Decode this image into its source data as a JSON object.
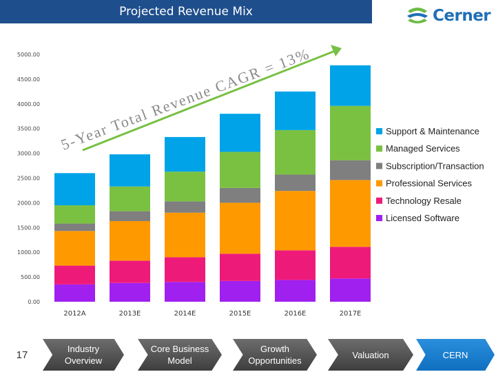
{
  "header": {
    "title": "Projected Revenue Mix",
    "logo_text": "Cerner"
  },
  "colors": {
    "header_bg": "#1f4e8c",
    "brand_blue": "#1f6fb5",
    "brand_green": "#6dbb45",
    "arrow": "#77c043",
    "annotation": "#8a8a8a"
  },
  "chart_data": {
    "type": "bar",
    "stacked": true,
    "title": "",
    "xlabel": "",
    "ylabel": "",
    "ylim": [
      0,
      5000
    ],
    "yticks": [
      "0.00",
      "500.00",
      "1000.00",
      "1500.00",
      "2000.00",
      "2500.00",
      "3000.00",
      "3500.00",
      "4000.00",
      "4500.00",
      "5000.00"
    ],
    "categories": [
      "2012A",
      "2013E",
      "2014E",
      "2015E",
      "2016E",
      "2017E"
    ],
    "series": [
      {
        "name": "Licensed Software",
        "color": "#a020f0",
        "values": [
          350,
          380,
          400,
          420,
          440,
          470
        ]
      },
      {
        "name": "Technology Resale",
        "color": "#ee1a7a",
        "values": [
          380,
          450,
          500,
          550,
          600,
          640
        ]
      },
      {
        "name": "Professional Services",
        "color": "#ff9900",
        "values": [
          700,
          800,
          900,
          1030,
          1200,
          1350
        ]
      },
      {
        "name": "Subscription/Transaction",
        "color": "#7f7f7f",
        "values": [
          150,
          200,
          230,
          300,
          330,
          400
        ]
      },
      {
        "name": "Managed Services",
        "color": "#7ac142",
        "values": [
          370,
          500,
          600,
          730,
          900,
          1100
        ]
      },
      {
        "name": "Support & Maintenance",
        "color": "#00a3e8",
        "values": [
          650,
          650,
          700,
          770,
          780,
          820
        ]
      }
    ],
    "legend_order": [
      "Support & Maintenance",
      "Managed Services",
      "Subscription/Transaction",
      "Professional Services",
      "Technology Resale",
      "Licensed Software"
    ],
    "legend_position": "right",
    "annotation": "5-Year Total Revenue CAGR = 13%",
    "grid": false
  },
  "nav": {
    "page_number": "17",
    "items": [
      {
        "label": "Industry Overview",
        "active": false
      },
      {
        "label": "Core Business Model",
        "active": false
      },
      {
        "label": "Growth Opportunities",
        "active": false
      },
      {
        "label": "Valuation",
        "active": false
      },
      {
        "label": "CERN",
        "active": true
      }
    ]
  }
}
